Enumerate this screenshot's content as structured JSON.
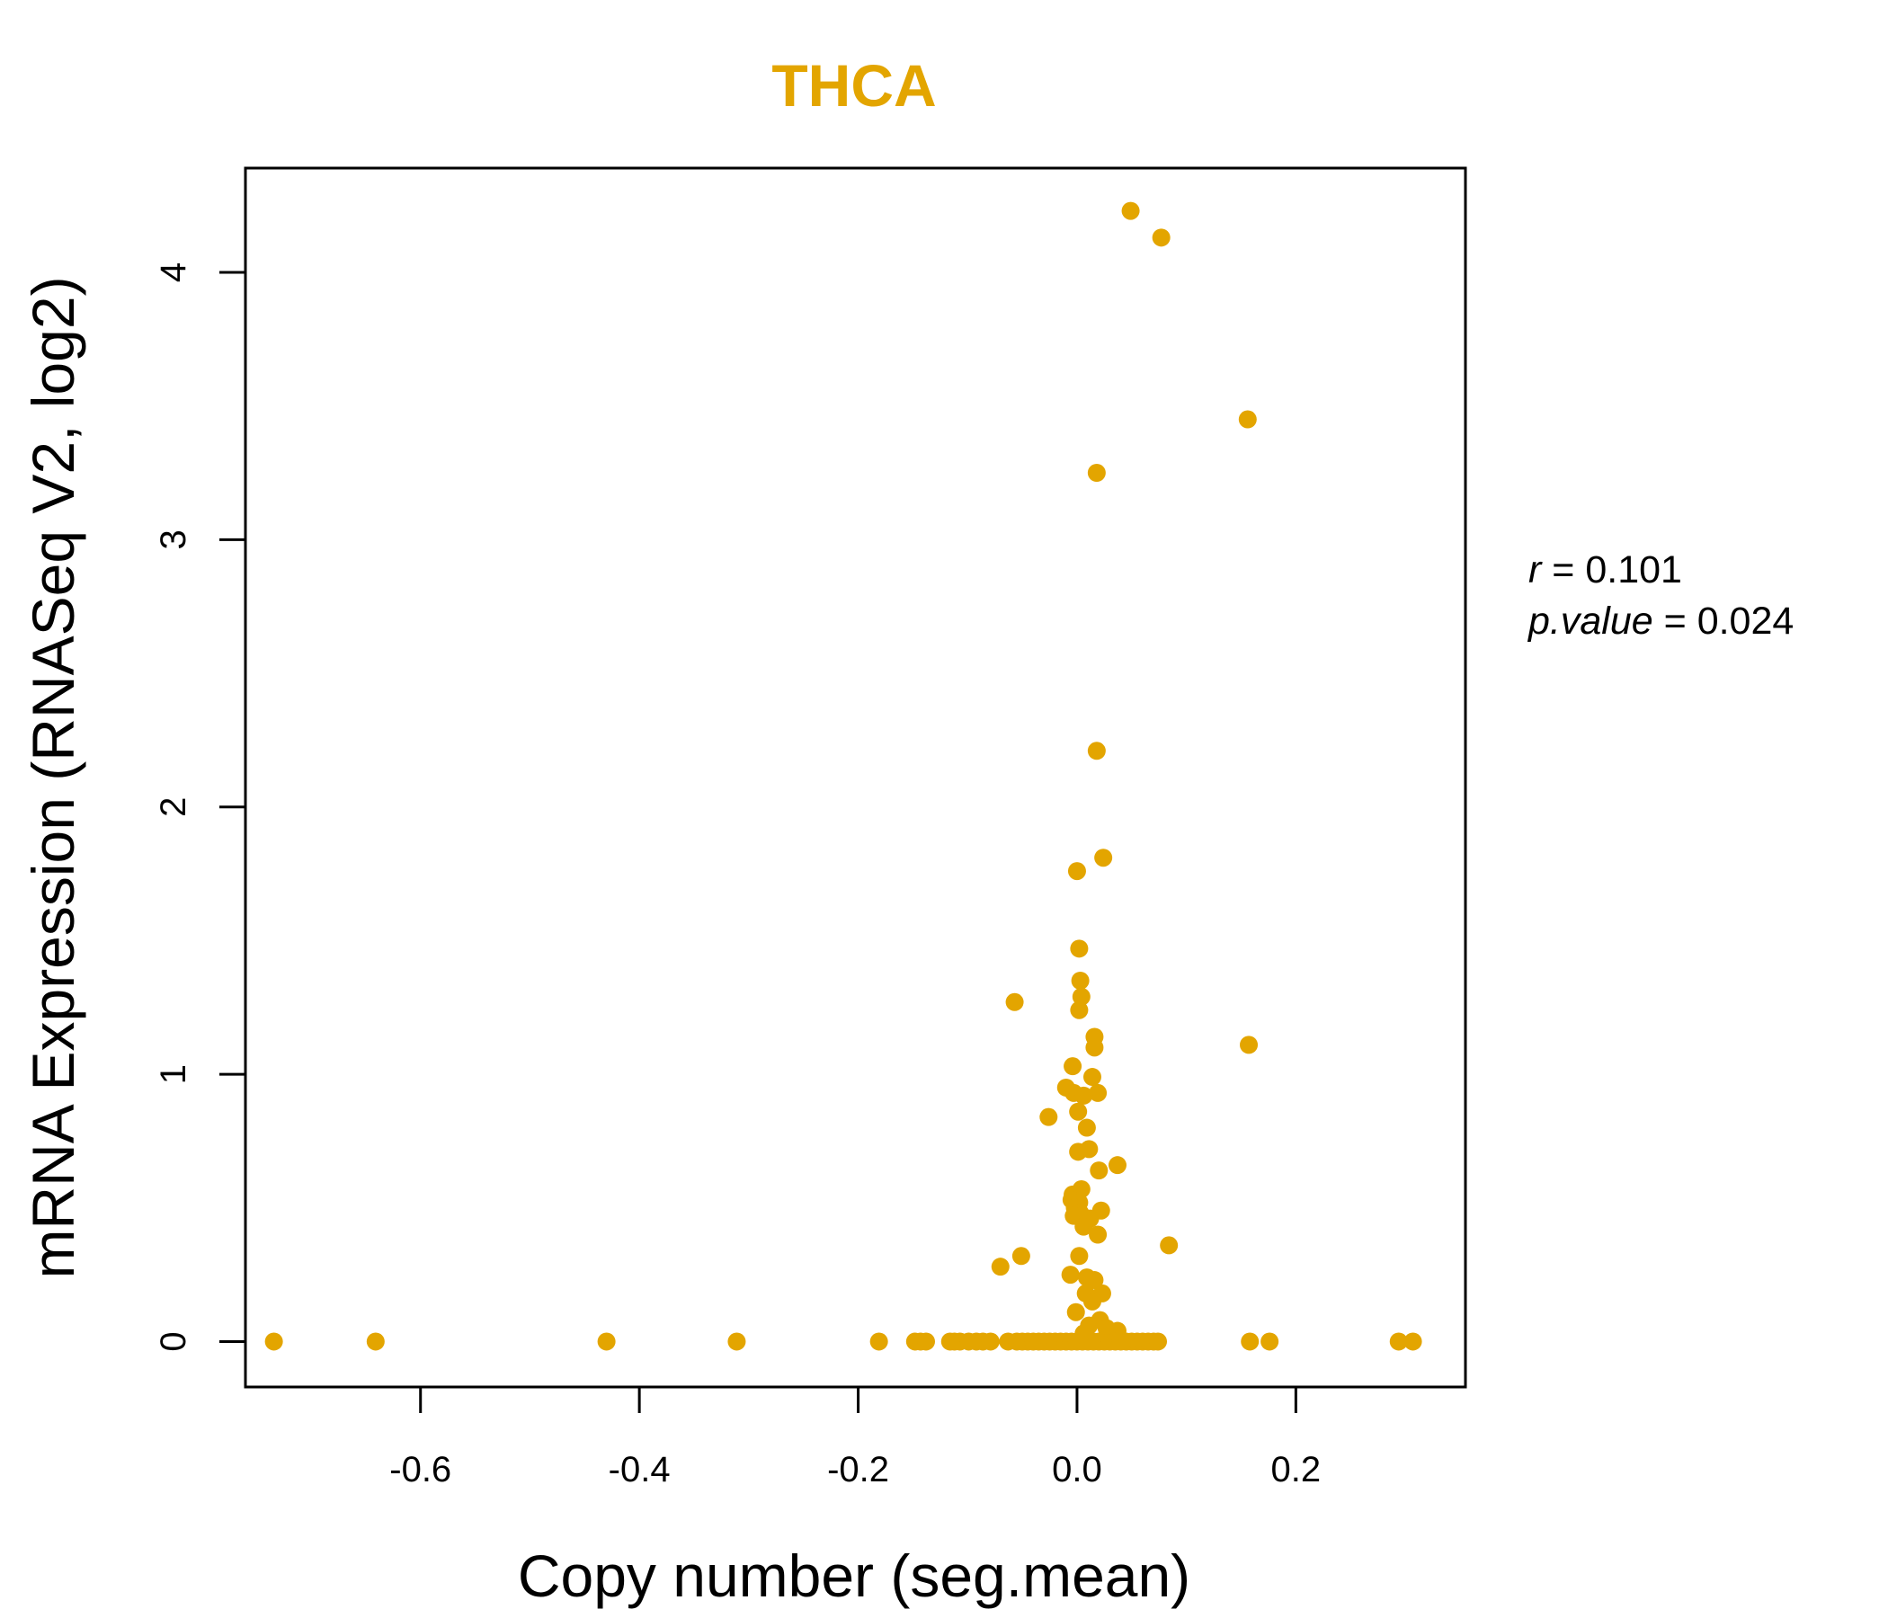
{
  "colors": {
    "point": "#E3A500",
    "title": "#E3A500",
    "axis": "#000000",
    "background": "#ffffff"
  },
  "chart_data": {
    "type": "scatter",
    "title": "THCA",
    "xlabel": "Copy number (seg.mean)",
    "ylabel": "mRNA Expression (RNASeq V2, log2)",
    "xlim": [
      -0.76,
      0.355
    ],
    "ylim": [
      -0.17,
      4.39
    ],
    "x_ticks": [
      -0.6,
      -0.4,
      -0.2,
      0.0,
      0.2
    ],
    "x_tick_labels": [
      "-0.6",
      "-0.4",
      "-0.2",
      "0.0",
      "0.2"
    ],
    "y_ticks": [
      0,
      1,
      2,
      3,
      4
    ],
    "y_tick_labels": [
      "0",
      "1",
      "2",
      "3",
      "4"
    ],
    "grid": false,
    "legend": "none",
    "annotations": {
      "r_symbol": "r",
      "r_equals": " = ",
      "r_value": "0.101",
      "p_symbol": "p.value",
      "p_equals": " = ",
      "p_value": "0.024"
    },
    "points": [
      {
        "x": 0.049,
        "y": 4.23
      },
      {
        "x": 0.077,
        "y": 4.13
      },
      {
        "x": 0.156,
        "y": 3.45
      },
      {
        "x": 0.018,
        "y": 3.25
      },
      {
        "x": 0.018,
        "y": 2.21
      },
      {
        "x": 0.024,
        "y": 1.81
      },
      {
        "x": 0.0,
        "y": 1.76
      },
      {
        "x": 0.002,
        "y": 1.47
      },
      {
        "x": 0.003,
        "y": 1.35
      },
      {
        "x": 0.004,
        "y": 1.29
      },
      {
        "x": -0.057,
        "y": 1.27
      },
      {
        "x": 0.002,
        "y": 1.24
      },
      {
        "x": 0.016,
        "y": 1.14
      },
      {
        "x": 0.157,
        "y": 1.11
      },
      {
        "x": 0.016,
        "y": 1.1
      },
      {
        "x": -0.004,
        "y": 1.03
      },
      {
        "x": 0.014,
        "y": 0.99
      },
      {
        "x": -0.01,
        "y": 0.95
      },
      {
        "x": -0.003,
        "y": 0.93
      },
      {
        "x": 0.019,
        "y": 0.93
      },
      {
        "x": 0.006,
        "y": 0.92
      },
      {
        "x": 0.001,
        "y": 0.86
      },
      {
        "x": -0.026,
        "y": 0.84
      },
      {
        "x": 0.009,
        "y": 0.8
      },
      {
        "x": 0.011,
        "y": 0.72
      },
      {
        "x": 0.001,
        "y": 0.71
      },
      {
        "x": 0.037,
        "y": 0.66
      },
      {
        "x": 0.02,
        "y": 0.64
      },
      {
        "x": 0.004,
        "y": 0.57
      },
      {
        "x": -0.004,
        "y": 0.55
      },
      {
        "x": -0.005,
        "y": 0.53
      },
      {
        "x": 0.002,
        "y": 0.52
      },
      {
        "x": -0.002,
        "y": 0.5
      },
      {
        "x": 0.022,
        "y": 0.49
      },
      {
        "x": 0.003,
        "y": 0.48
      },
      {
        "x": -0.003,
        "y": 0.47
      },
      {
        "x": 0.012,
        "y": 0.46
      },
      {
        "x": 0.006,
        "y": 0.43
      },
      {
        "x": 0.019,
        "y": 0.4
      },
      {
        "x": 0.084,
        "y": 0.36
      },
      {
        "x": -0.051,
        "y": 0.32
      },
      {
        "x": 0.002,
        "y": 0.32
      },
      {
        "x": -0.07,
        "y": 0.28
      },
      {
        "x": -0.006,
        "y": 0.25
      },
      {
        "x": 0.009,
        "y": 0.24
      },
      {
        "x": 0.016,
        "y": 0.23
      },
      {
        "x": 0.008,
        "y": 0.18
      },
      {
        "x": 0.023,
        "y": 0.18
      },
      {
        "x": 0.014,
        "y": 0.15
      },
      {
        "x": -0.001,
        "y": 0.11
      },
      {
        "x": 0.021,
        "y": 0.08
      },
      {
        "x": 0.011,
        "y": 0.06
      },
      {
        "x": 0.027,
        "y": 0.05
      },
      {
        "x": 0.037,
        "y": 0.04
      },
      {
        "x": 0.006,
        "y": 0.03
      },
      {
        "x": -0.734,
        "y": 0.0
      },
      {
        "x": -0.641,
        "y": 0.0
      },
      {
        "x": -0.43,
        "y": 0.0
      },
      {
        "x": -0.311,
        "y": 0.0
      },
      {
        "x": -0.181,
        "y": 0.0
      },
      {
        "x": -0.148,
        "y": 0.0
      },
      {
        "x": -0.143,
        "y": 0.0
      },
      {
        "x": -0.138,
        "y": 0.0
      },
      {
        "x": -0.116,
        "y": 0.0
      },
      {
        "x": -0.112,
        "y": 0.0
      },
      {
        "x": -0.107,
        "y": 0.0
      },
      {
        "x": -0.099,
        "y": 0.0
      },
      {
        "x": -0.092,
        "y": 0.0
      },
      {
        "x": -0.086,
        "y": 0.0
      },
      {
        "x": -0.079,
        "y": 0.0
      },
      {
        "x": -0.063,
        "y": 0.0
      },
      {
        "x": -0.055,
        "y": 0.0
      },
      {
        "x": -0.05,
        "y": 0.0
      },
      {
        "x": -0.045,
        "y": 0.0
      },
      {
        "x": -0.04,
        "y": 0.0
      },
      {
        "x": -0.035,
        "y": 0.0
      },
      {
        "x": -0.03,
        "y": 0.0
      },
      {
        "x": -0.025,
        "y": 0.0
      },
      {
        "x": -0.02,
        "y": 0.0
      },
      {
        "x": -0.015,
        "y": 0.0
      },
      {
        "x": -0.01,
        "y": 0.0
      },
      {
        "x": -0.005,
        "y": 0.0
      },
      {
        "x": 0.0,
        "y": 0.0
      },
      {
        "x": 0.005,
        "y": 0.0
      },
      {
        "x": 0.01,
        "y": 0.0
      },
      {
        "x": 0.015,
        "y": 0.0
      },
      {
        "x": 0.02,
        "y": 0.0
      },
      {
        "x": 0.025,
        "y": 0.0
      },
      {
        "x": 0.03,
        "y": 0.0
      },
      {
        "x": 0.035,
        "y": 0.0
      },
      {
        "x": 0.04,
        "y": 0.0
      },
      {
        "x": 0.045,
        "y": 0.0
      },
      {
        "x": 0.05,
        "y": 0.0
      },
      {
        "x": 0.055,
        "y": 0.0
      },
      {
        "x": 0.06,
        "y": 0.0
      },
      {
        "x": 0.065,
        "y": 0.0
      },
      {
        "x": 0.07,
        "y": 0.0
      },
      {
        "x": 0.074,
        "y": 0.0
      },
      {
        "x": 0.158,
        "y": 0.0
      },
      {
        "x": 0.176,
        "y": 0.0
      },
      {
        "x": 0.294,
        "y": 0.0
      },
      {
        "x": 0.307,
        "y": 0.0
      }
    ]
  }
}
